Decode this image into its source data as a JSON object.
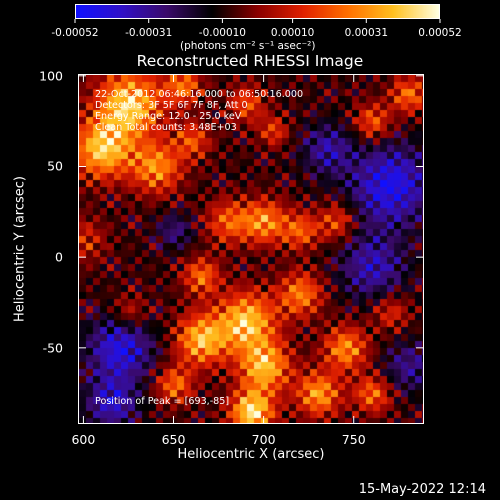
{
  "colorbar": {
    "ticks": [
      "-0.00052",
      "-0.00031",
      "-0.00010",
      "0.00010",
      "0.00031",
      "0.00052"
    ],
    "tick_values": [
      -0.00052,
      -0.00031,
      -0.0001,
      0.0001,
      0.00031,
      0.00052
    ],
    "units": "(photons cm⁻² s⁻¹ asec⁻²)",
    "range": [
      -0.00052,
      0.00052
    ],
    "colors": [
      "#1010ff",
      "#3010c8",
      "#3a0a6a",
      "#000000",
      "#8a0000",
      "#e02000",
      "#ff7000",
      "#ffc020",
      "#ffffe0"
    ]
  },
  "title": "Reconstructed RHESSI Image",
  "annotations": {
    "time_range": "22-Oct-2012 06:46:16.000 to 06:50:16.000",
    "detectors": "Detectors: 3F 5F 6F 7F 8F, Att 0",
    "energy": "Energy Range: 12.0 - 25.0 keV",
    "clean": "Clean    Total counts: 3.48E+03",
    "peak": "Position of Peak = [693,-85]"
  },
  "footer": "15-May-2022 12:14",
  "chart_data": {
    "type": "heatmap",
    "title": "Reconstructed RHESSI Image",
    "xlabel": "Heliocentric X (arcsec)",
    "ylabel": "Heliocentric Y (arcsec)",
    "xlim": [
      597,
      789
    ],
    "ylim": [
      -92,
      101
    ],
    "xticks": [
      600,
      650,
      700,
      750
    ],
    "yticks": [
      -50,
      0,
      50,
      100
    ],
    "value_range": [
      -0.00052,
      0.00052
    ],
    "peak": [
      693,
      -85
    ],
    "description_of_field": "bright (yellow/white) regions near lower-center and upper-left; dark purple/blue regions on right and lower-left"
  }
}
